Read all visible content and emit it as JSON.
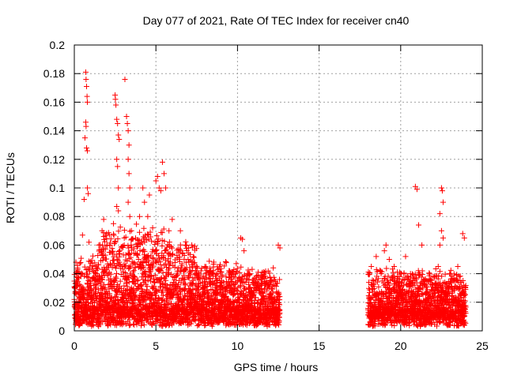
{
  "chart_data": {
    "type": "scatter",
    "title": "Day 077 of 2021, Rate Of TEC Index for receiver cn40",
    "xlabel": "GPS time / hours",
    "ylabel": "ROTI / TECUs",
    "xlim": [
      0,
      25
    ],
    "ylim": [
      0,
      0.2
    ],
    "xticks": [
      "0",
      "5",
      "10",
      "15",
      "20",
      "25"
    ],
    "yticks": [
      "0",
      "0.02",
      "0.04",
      "0.06",
      "0.08",
      "0.1",
      "0.12",
      "0.14",
      "0.16",
      "0.18",
      "0.2"
    ],
    "grid": true,
    "marker": "+",
    "series_color": "#ff0000",
    "data_coverage_hours": [
      [
        0.0,
        12.6
      ],
      [
        18.0,
        24.0
      ]
    ],
    "series": [
      {
        "name": "ROTI",
        "points": [
          [
            0.1,
            0.048
          ],
          [
            0.2,
            0.044
          ],
          [
            0.3,
            0.02
          ],
          [
            0.5,
            0.067
          ],
          [
            0.6,
            0.092
          ],
          [
            0.65,
            0.135
          ],
          [
            0.7,
            0.181
          ],
          [
            0.72,
            0.176
          ],
          [
            0.75,
            0.171
          ],
          [
            0.78,
            0.164
          ],
          [
            0.8,
            0.16
          ],
          [
            0.7,
            0.146
          ],
          [
            0.72,
            0.143
          ],
          [
            0.75,
            0.128
          ],
          [
            0.8,
            0.126
          ],
          [
            0.8,
            0.1
          ],
          [
            0.85,
            0.096
          ],
          [
            0.9,
            0.062
          ],
          [
            1.5,
            0.06
          ],
          [
            1.7,
            0.07
          ],
          [
            1.8,
            0.078
          ],
          [
            2.0,
            0.06
          ],
          [
            2.2,
            0.055
          ],
          [
            2.4,
            0.075
          ],
          [
            2.5,
            0.165
          ],
          [
            2.52,
            0.162
          ],
          [
            2.55,
            0.158
          ],
          [
            2.6,
            0.148
          ],
          [
            2.65,
            0.145
          ],
          [
            2.7,
            0.137
          ],
          [
            2.75,
            0.134
          ],
          [
            2.6,
            0.12
          ],
          [
            2.65,
            0.115
          ],
          [
            2.7,
            0.1
          ],
          [
            2.6,
            0.087
          ],
          [
            2.7,
            0.084
          ],
          [
            3.1,
            0.176
          ],
          [
            3.2,
            0.15
          ],
          [
            3.25,
            0.145
          ],
          [
            3.3,
            0.14
          ],
          [
            3.35,
            0.13
          ],
          [
            3.3,
            0.12
          ],
          [
            3.35,
            0.11
          ],
          [
            3.4,
            0.1
          ],
          [
            3.3,
            0.09
          ],
          [
            3.4,
            0.08
          ],
          [
            3.5,
            0.07
          ],
          [
            4.0,
            0.08
          ],
          [
            4.2,
            0.1
          ],
          [
            4.3,
            0.09
          ],
          [
            4.5,
            0.08
          ],
          [
            4.6,
            0.095
          ],
          [
            4.8,
            0.072
          ],
          [
            5.0,
            0.105
          ],
          [
            5.1,
            0.108
          ],
          [
            5.2,
            0.1
          ],
          [
            5.3,
            0.098
          ],
          [
            5.4,
            0.118
          ],
          [
            5.5,
            0.11
          ],
          [
            5.6,
            0.1
          ],
          [
            5.8,
            0.07
          ],
          [
            6.0,
            0.078
          ],
          [
            6.5,
            0.07
          ],
          [
            6.8,
            0.06
          ],
          [
            7.0,
            0.058
          ],
          [
            7.2,
            0.06
          ],
          [
            7.5,
            0.045
          ],
          [
            8.0,
            0.045
          ],
          [
            8.5,
            0.04
          ],
          [
            9.0,
            0.038
          ],
          [
            9.5,
            0.042
          ],
          [
            10.2,
            0.065
          ],
          [
            10.3,
            0.064
          ],
          [
            10.4,
            0.056
          ],
          [
            10.6,
            0.04
          ],
          [
            11.0,
            0.03
          ],
          [
            11.5,
            0.038
          ],
          [
            12.0,
            0.035
          ],
          [
            12.5,
            0.06
          ],
          [
            12.6,
            0.058
          ],
          [
            18.2,
            0.045
          ],
          [
            18.5,
            0.052
          ],
          [
            18.8,
            0.04
          ],
          [
            19.0,
            0.056
          ],
          [
            19.1,
            0.06
          ],
          [
            19.3,
            0.05
          ],
          [
            19.6,
            0.045
          ],
          [
            20.0,
            0.04
          ],
          [
            20.3,
            0.052
          ],
          [
            20.6,
            0.04
          ],
          [
            20.9,
            0.101
          ],
          [
            21.0,
            0.099
          ],
          [
            21.1,
            0.074
          ],
          [
            21.3,
            0.06
          ],
          [
            21.6,
            0.035
          ],
          [
            22.0,
            0.038
          ],
          [
            22.3,
            0.045
          ],
          [
            22.5,
            0.1
          ],
          [
            22.55,
            0.098
          ],
          [
            22.6,
            0.09
          ],
          [
            22.4,
            0.082
          ],
          [
            22.5,
            0.07
          ],
          [
            22.6,
            0.065
          ],
          [
            22.4,
            0.06
          ],
          [
            23.0,
            0.04
          ],
          [
            23.5,
            0.045
          ],
          [
            23.8,
            0.068
          ],
          [
            23.9,
            0.065
          ]
        ]
      }
    ]
  }
}
